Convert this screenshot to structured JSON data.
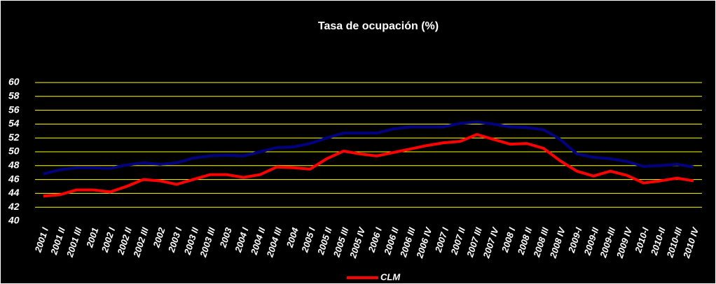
{
  "chart_data": {
    "type": "line",
    "title": "Tasa de ocupación (%)",
    "categories": [
      "2001 I",
      "2001 II",
      "2001 III",
      "2001",
      "2002 I",
      "2002 II",
      "2002 III",
      "2002",
      "2003 I",
      "2003 II",
      "2003 III",
      "2003",
      "2004 I",
      "2004 II",
      "2004 III",
      "2004",
      "2005 I",
      "2005 II",
      "2005 III",
      "2005 IV",
      "2006 I",
      "2006 II",
      "2006 III",
      "2006 IV",
      "2007 I",
      "2007 II",
      "2007 III",
      "2007 IV",
      "2008 I",
      "2008 II",
      "2008 III",
      "2008 IV",
      "2009-I",
      "2009-II",
      "2009-III",
      "2009 IV",
      "2010-I",
      "2010-II",
      "2010-III",
      "2010 IV"
    ],
    "series": [
      {
        "color": "#000080",
        "values": [
          46.8,
          47.4,
          47.7,
          47.7,
          47.6,
          48.1,
          48.4,
          48.2,
          48.4,
          49.1,
          49.4,
          49.5,
          49.4,
          50.0,
          50.6,
          50.7,
          51.2,
          52.0,
          52.7,
          52.7,
          52.7,
          53.3,
          53.6,
          53.6,
          53.6,
          54.1,
          54.3,
          54.0,
          53.6,
          53.5,
          53.2,
          51.8,
          49.7,
          49.2,
          49.0,
          48.6,
          47.9,
          48.0,
          48.2,
          47.8
        ]
      },
      {
        "name": "CLM",
        "color": "#ff0000",
        "values": [
          43.6,
          43.8,
          44.5,
          44.5,
          44.2,
          45.0,
          46.0,
          45.8,
          45.3,
          46.0,
          46.7,
          46.7,
          46.3,
          46.7,
          47.8,
          47.7,
          47.5,
          49.0,
          50.1,
          49.7,
          49.4,
          49.9,
          50.4,
          50.9,
          51.3,
          51.5,
          52.5,
          51.8,
          51.1,
          51.2,
          50.5,
          48.7,
          47.2,
          46.5,
          47.2,
          46.6,
          45.5,
          45.8,
          46.2,
          45.8
        ]
      }
    ],
    "ylim": [
      40,
      60
    ],
    "yticks": [
      40,
      42,
      44,
      46,
      48,
      50,
      52,
      54,
      56,
      58,
      60
    ],
    "grid": true,
    "grid_color": "#ffff00",
    "legend": "bottom"
  }
}
